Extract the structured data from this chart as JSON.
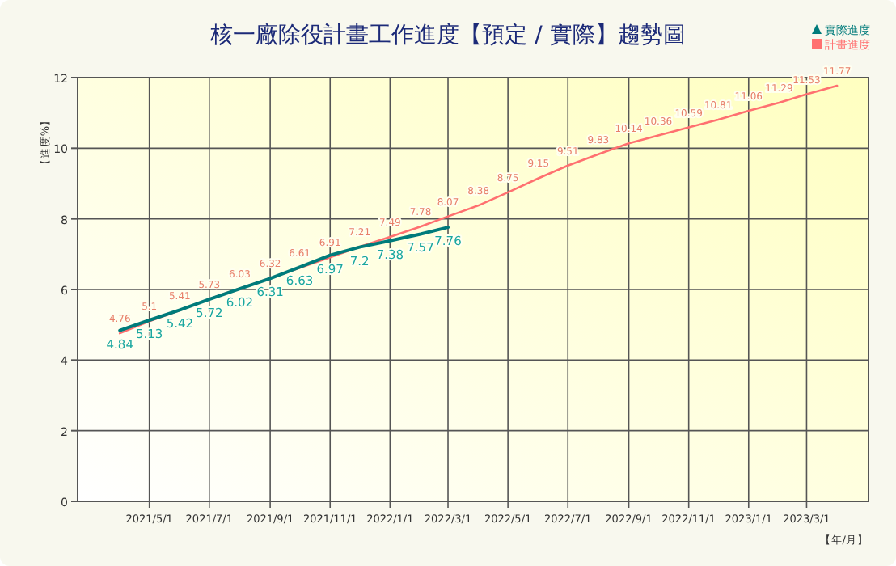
{
  "chart_data": {
    "type": "line",
    "title": "核一廠除役計畫工作進度【預定 / 實際】趨勢圖",
    "ylabel": "【進度%】",
    "xlabel": "【年/月】",
    "xlim": [
      "2021-02-17",
      "2023-05-03"
    ],
    "xticks": [
      {
        "value": "2021-05-01",
        "label": "2021/5/1"
      },
      {
        "value": "2021-07-01",
        "label": "2021/7/1"
      },
      {
        "value": "2021-09-01",
        "label": "2021/9/1"
      },
      {
        "value": "2021-11-01",
        "label": "2021/11/1"
      },
      {
        "value": "2022-01-01",
        "label": "2022/1/1"
      },
      {
        "value": "2022-03-01",
        "label": "2022/3/1"
      },
      {
        "value": "2022-05-01",
        "label": "2022/5/1"
      },
      {
        "value": "2022-07-01",
        "label": "2022/7/1"
      },
      {
        "value": "2022-09-01",
        "label": "2022/9/1"
      },
      {
        "value": "2022-11-01",
        "label": "2022/11/1"
      },
      {
        "value": "2023-01-01",
        "label": "2023/1/1"
      },
      {
        "value": "2023-03-01",
        "label": "2023/3/1"
      }
    ],
    "ylim": [
      0,
      12
    ],
    "yticks": [
      0,
      2,
      4,
      6,
      8,
      10,
      12
    ],
    "grid": true,
    "legend": "top right",
    "data_labels": true,
    "marker": "none",
    "series": [
      {
        "name": "實際進度",
        "color": "#007b7b",
        "x": [
          "2021-04-01",
          "2021-05-01",
          "2021-06-01",
          "2021-07-01",
          "2021-08-01",
          "2021-09-01",
          "2021-10-01",
          "2021-11-01",
          "2021-12-01",
          "2022-01-01",
          "2022-02-01",
          "2022-03-01"
        ],
        "values": [
          4.84,
          5.13,
          5.42,
          5.72,
          6.02,
          6.31,
          6.63,
          6.97,
          7.2,
          7.38,
          7.57,
          7.76
        ]
      },
      {
        "name": "計畫進度",
        "color": "#ff7070",
        "x": [
          "2021-04-01",
          "2021-05-01",
          "2021-06-01",
          "2021-07-01",
          "2021-08-01",
          "2021-09-01",
          "2021-10-01",
          "2021-11-01",
          "2021-12-01",
          "2022-01-01",
          "2022-02-01",
          "2022-03-01",
          "2022-04-01",
          "2022-05-01",
          "2022-06-01",
          "2022-07-01",
          "2022-08-01",
          "2022-09-01",
          "2022-10-01",
          "2022-11-01",
          "2022-12-01",
          "2023-01-01",
          "2023-02-01",
          "2023-03-01",
          "2023-04-01"
        ],
        "values": [
          4.76,
          5.1,
          5.41,
          5.73,
          6.03,
          6.32,
          6.61,
          6.91,
          7.21,
          7.49,
          7.78,
          8.07,
          8.38,
          8.75,
          9.15,
          9.51,
          9.83,
          10.14,
          10.36,
          10.59,
          10.81,
          11.06,
          11.29,
          11.53,
          11.77
        ]
      }
    ]
  }
}
